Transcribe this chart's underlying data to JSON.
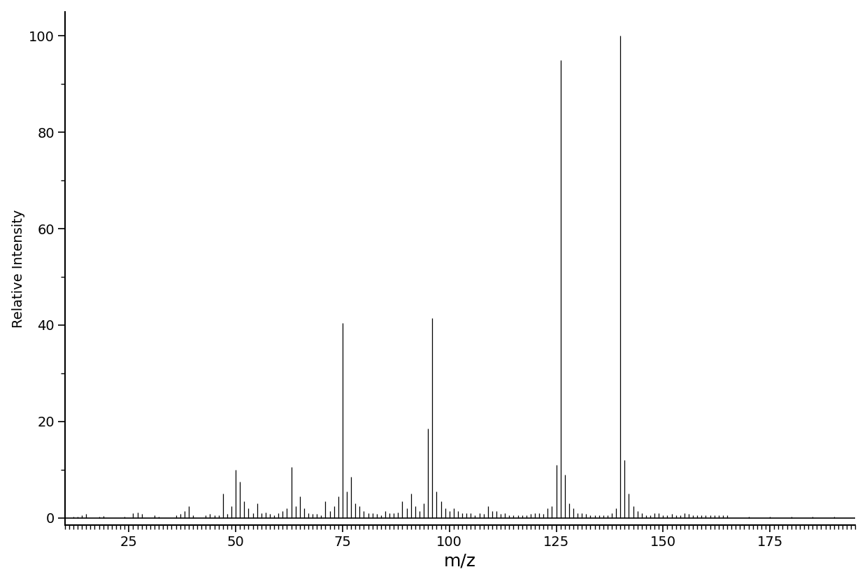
{
  "title": "",
  "xlabel": "m/z",
  "ylabel": "Relative Intensity",
  "xlim": [
    10,
    195
  ],
  "ylim": [
    -1.5,
    105
  ],
  "xticks": [
    25,
    50,
    75,
    100,
    125,
    150,
    175
  ],
  "yticks": [
    0,
    20,
    40,
    60,
    80,
    100
  ],
  "background_color": "#ffffff",
  "line_color": "#000000",
  "peaks": [
    [
      12,
      0.3
    ],
    [
      13,
      0.3
    ],
    [
      14,
      0.5
    ],
    [
      15,
      0.8
    ],
    [
      18,
      0.3
    ],
    [
      19,
      0.4
    ],
    [
      24,
      0.3
    ],
    [
      26,
      1.0
    ],
    [
      27,
      1.2
    ],
    [
      28,
      0.8
    ],
    [
      31,
      0.5
    ],
    [
      32,
      0.3
    ],
    [
      36,
      0.5
    ],
    [
      37,
      0.8
    ],
    [
      38,
      1.5
    ],
    [
      39,
      2.5
    ],
    [
      40,
      0.5
    ],
    [
      43,
      0.5
    ],
    [
      44,
      0.8
    ],
    [
      45,
      0.6
    ],
    [
      46,
      0.5
    ],
    [
      47,
      5.0
    ],
    [
      48,
      0.8
    ],
    [
      49,
      2.5
    ],
    [
      50,
      10.0
    ],
    [
      51,
      7.5
    ],
    [
      52,
      3.5
    ],
    [
      53,
      2.0
    ],
    [
      54,
      1.0
    ],
    [
      55,
      3.0
    ],
    [
      56,
      1.0
    ],
    [
      57,
      1.2
    ],
    [
      58,
      0.8
    ],
    [
      59,
      0.5
    ],
    [
      60,
      1.0
    ],
    [
      61,
      1.5
    ],
    [
      62,
      2.0
    ],
    [
      63,
      10.5
    ],
    [
      64,
      2.5
    ],
    [
      65,
      4.5
    ],
    [
      66,
      2.0
    ],
    [
      67,
      1.0
    ],
    [
      68,
      0.8
    ],
    [
      69,
      0.8
    ],
    [
      70,
      0.5
    ],
    [
      71,
      3.5
    ],
    [
      72,
      1.5
    ],
    [
      73,
      2.5
    ],
    [
      74,
      4.5
    ],
    [
      75,
      40.5
    ],
    [
      76,
      5.5
    ],
    [
      77,
      8.5
    ],
    [
      78,
      3.0
    ],
    [
      79,
      2.5
    ],
    [
      80,
      1.5
    ],
    [
      81,
      1.0
    ],
    [
      82,
      1.0
    ],
    [
      83,
      0.8
    ],
    [
      84,
      0.5
    ],
    [
      85,
      1.5
    ],
    [
      86,
      1.0
    ],
    [
      87,
      1.0
    ],
    [
      88,
      1.2
    ],
    [
      89,
      3.5
    ],
    [
      90,
      2.0
    ],
    [
      91,
      5.0
    ],
    [
      92,
      2.5
    ],
    [
      93,
      1.5
    ],
    [
      94,
      3.0
    ],
    [
      95,
      18.5
    ],
    [
      96,
      41.5
    ],
    [
      97,
      5.5
    ],
    [
      98,
      3.5
    ],
    [
      99,
      2.0
    ],
    [
      100,
      1.5
    ],
    [
      101,
      2.0
    ],
    [
      102,
      1.5
    ],
    [
      103,
      1.0
    ],
    [
      104,
      1.0
    ],
    [
      105,
      1.0
    ],
    [
      106,
      0.5
    ],
    [
      107,
      1.0
    ],
    [
      108,
      0.8
    ],
    [
      109,
      2.5
    ],
    [
      110,
      1.5
    ],
    [
      111,
      1.5
    ],
    [
      112,
      0.8
    ],
    [
      113,
      1.0
    ],
    [
      114,
      0.5
    ],
    [
      115,
      0.5
    ],
    [
      116,
      0.5
    ],
    [
      117,
      0.5
    ],
    [
      118,
      0.5
    ],
    [
      119,
      0.8
    ],
    [
      120,
      1.0
    ],
    [
      121,
      1.0
    ],
    [
      122,
      0.8
    ],
    [
      123,
      2.0
    ],
    [
      124,
      2.5
    ],
    [
      125,
      11.0
    ],
    [
      126,
      95.0
    ],
    [
      127,
      9.0
    ],
    [
      128,
      3.0
    ],
    [
      129,
      2.0
    ],
    [
      130,
      1.0
    ],
    [
      131,
      1.0
    ],
    [
      132,
      0.8
    ],
    [
      133,
      0.5
    ],
    [
      134,
      0.5
    ],
    [
      135,
      0.5
    ],
    [
      136,
      0.5
    ],
    [
      137,
      0.5
    ],
    [
      138,
      1.0
    ],
    [
      139,
      2.0
    ],
    [
      140,
      100.0
    ],
    [
      141,
      12.0
    ],
    [
      142,
      5.0
    ],
    [
      143,
      2.5
    ],
    [
      144,
      1.5
    ],
    [
      145,
      1.0
    ],
    [
      146,
      0.5
    ],
    [
      147,
      0.5
    ],
    [
      148,
      1.0
    ],
    [
      149,
      1.0
    ],
    [
      150,
      0.5
    ],
    [
      151,
      0.5
    ],
    [
      152,
      0.8
    ],
    [
      153,
      0.5
    ],
    [
      154,
      0.5
    ],
    [
      155,
      1.0
    ],
    [
      156,
      0.8
    ],
    [
      157,
      0.5
    ],
    [
      158,
      0.5
    ],
    [
      159,
      0.5
    ],
    [
      160,
      0.5
    ],
    [
      161,
      0.5
    ],
    [
      162,
      0.5
    ],
    [
      163,
      0.5
    ],
    [
      164,
      0.5
    ],
    [
      165,
      0.5
    ],
    [
      170,
      0.3
    ],
    [
      175,
      0.3
    ],
    [
      180,
      0.3
    ],
    [
      185,
      0.3
    ],
    [
      190,
      0.3
    ]
  ],
  "xlabel_fontsize": 18,
  "ylabel_fontsize": 14,
  "tick_labelsize": 14
}
